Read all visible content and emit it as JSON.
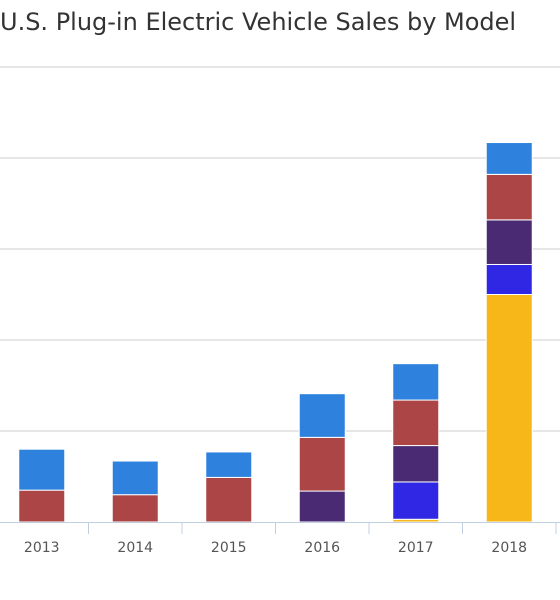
{
  "chart_data": {
    "type": "bar",
    "stacked": true,
    "title": "U.S. Plug-in Electric Vehicle Sales by Model",
    "categories": [
      "2013",
      "2014",
      "2015",
      "2016",
      "2017",
      "2018"
    ],
    "grid": true,
    "series": [
      {
        "color": "#f7b718",
        "values": [
          0,
          0,
          0,
          0,
          3,
          250
        ]
      },
      {
        "color": "#2f27e3",
        "values": [
          0,
          0,
          0,
          0,
          41,
          33
        ]
      },
      {
        "color": "#4a2a73",
        "values": [
          0,
          0,
          0,
          34,
          40,
          49
        ]
      },
      {
        "color": "#ab4546",
        "values": [
          35,
          30,
          49,
          59,
          50,
          50
        ]
      },
      {
        "color": "#2e82de",
        "values": [
          45,
          37,
          28,
          48,
          40,
          35
        ]
      }
    ]
  }
}
